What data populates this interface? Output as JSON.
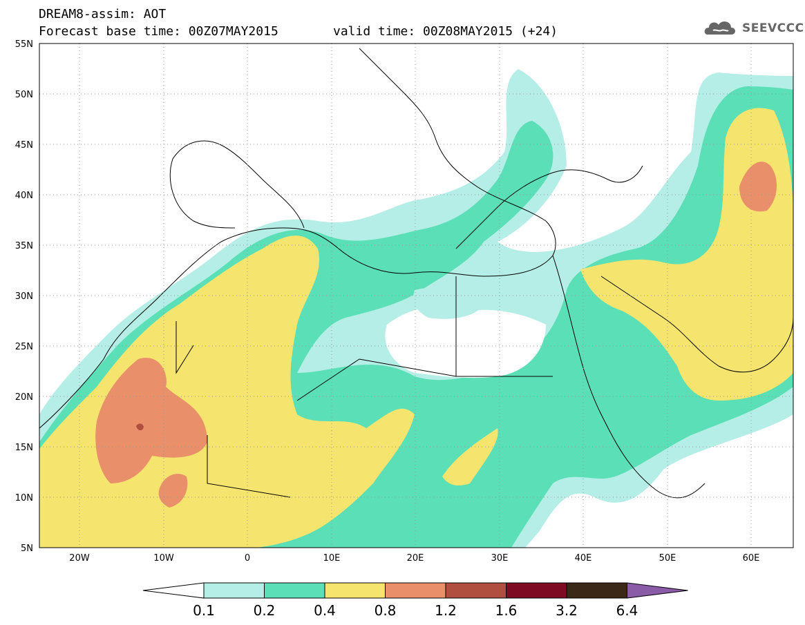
{
  "header": {
    "line1": "DREAM8-assim: AOT",
    "line2_left": "Forecast base time: 00Z07MAY2015",
    "line2_right": "valid time: 00Z08MAY2015 (+24)",
    "logo_text": "SEEVCCC",
    "logo_icon": "cloud-logo-icon"
  },
  "map": {
    "projection": "lat-lon",
    "lon_range": [
      -25,
      65
    ],
    "lat_range": [
      5,
      55
    ],
    "lat_labels": [
      "55N",
      "50N",
      "45N",
      "40N",
      "35N",
      "30N",
      "25N",
      "20N",
      "15N",
      "10N",
      "5N"
    ],
    "lon_labels": [
      "20W",
      "10W",
      "0",
      "10E",
      "20E",
      "30E",
      "40E",
      "50E",
      "60E"
    ],
    "grid": "dotted"
  },
  "colorbar": {
    "labels": [
      "0.1",
      "0.2",
      "0.4",
      "0.8",
      "1.2",
      "1.6",
      "3.2",
      "6.4"
    ],
    "colors": [
      "#b5eee6",
      "#5bdfb6",
      "#f5e46e",
      "#e98f6a",
      "#b04e40",
      "#7d0b22",
      "#3c2816",
      "#8a5ca8"
    ],
    "low_end_color": "#ffffff"
  },
  "colors": {
    "aot_0_1": "#b5eee6",
    "aot_0_2": "#5bdfb6",
    "aot_0_4": "#f5e46e",
    "aot_0_8": "#e98f6a",
    "aot_1_2": "#b04e40"
  }
}
